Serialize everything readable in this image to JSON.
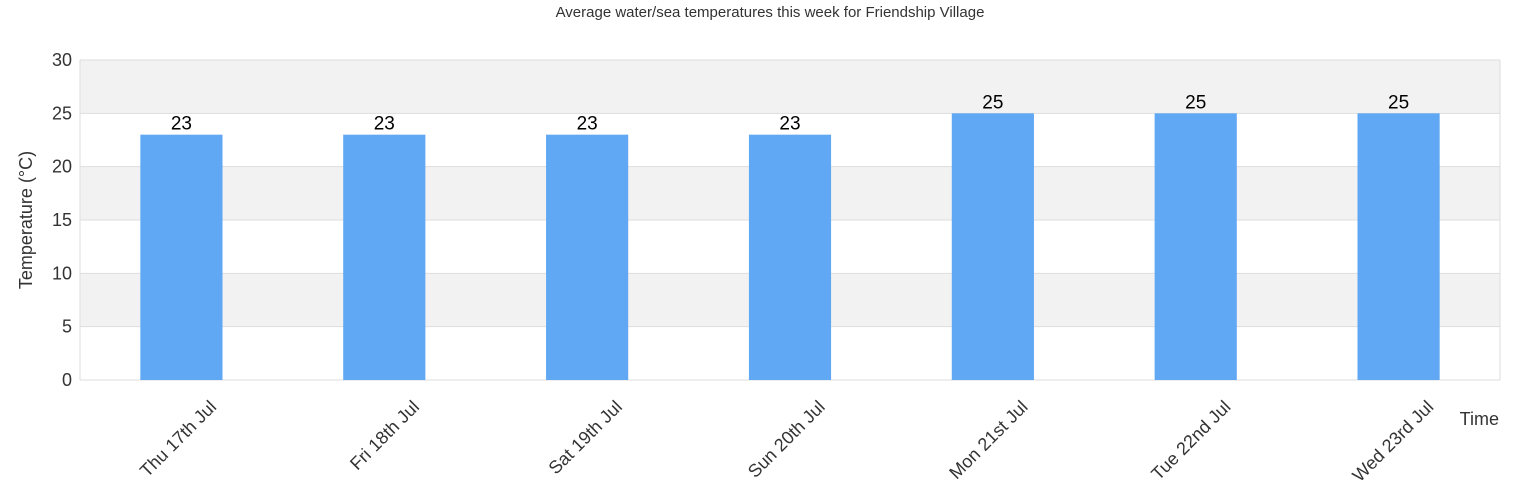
{
  "chart_data": {
    "type": "bar",
    "title": "Average water/sea temperatures this week for Friendship Village",
    "xlabel": "Time",
    "ylabel": "Temperature (°C)",
    "categories": [
      "Thu 17th Jul",
      "Fri 18th Jul",
      "Sat 19th Jul",
      "Sun 20th Jul",
      "Mon 21st Jul",
      "Tue 22nd Jul",
      "Wed 23rd Jul"
    ],
    "values": [
      23,
      23,
      23,
      23,
      25,
      25,
      25
    ],
    "value_labels": [
      "23",
      "23",
      "23",
      "23",
      "25",
      "25",
      "25"
    ],
    "ylim": [
      0,
      30
    ],
    "yticks": [
      "0",
      "5",
      "10",
      "15",
      "20",
      "25",
      "30"
    ],
    "grid": true,
    "banded_background": true,
    "colors": {
      "bar": "#60a7f4",
      "band": "#f2f2f2",
      "grid": "#dddddd"
    }
  }
}
